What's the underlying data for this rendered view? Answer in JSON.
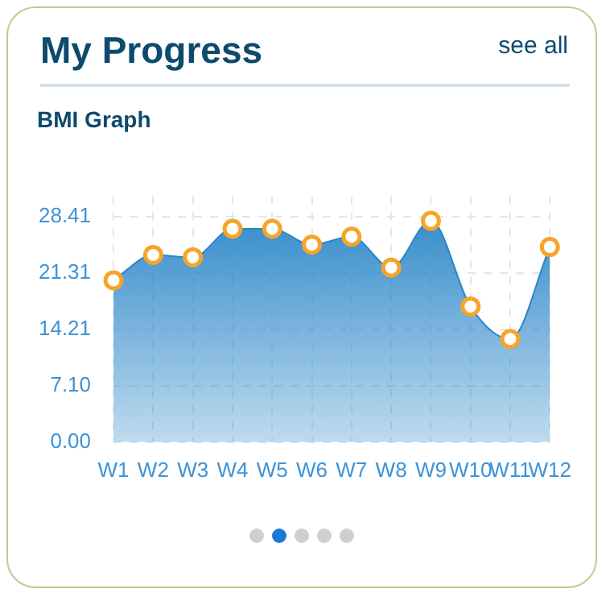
{
  "chart_data": {
    "type": "area",
    "title": "My Progress",
    "subtitle": "BMI Graph",
    "annotations": [
      "see all"
    ],
    "categories": [
      "W1",
      "W2",
      "W3",
      "W4",
      "W5",
      "W6",
      "W7",
      "W8",
      "W9",
      "W10",
      "W11",
      "W12"
    ],
    "series": [
      {
        "color": "#2a86c8",
        "values": [
          20.4,
          23.6,
          23.3,
          26.9,
          26.9,
          24.9,
          25.9,
          22.0,
          27.9,
          17.1,
          13.0,
          24.6
        ]
      }
    ],
    "ylim": [
      0,
      31
    ],
    "yticks": [
      {
        "value": 0,
        "label": "0.00"
      },
      {
        "value": 7.1,
        "label": "7.10"
      },
      {
        "value": 14.21,
        "label": "14.21"
      },
      {
        "value": 21.31,
        "label": "21.31"
      },
      {
        "value": 28.41,
        "label": "28.41"
      }
    ],
    "grid": true,
    "marker": "circle",
    "legend": false
  }
}
